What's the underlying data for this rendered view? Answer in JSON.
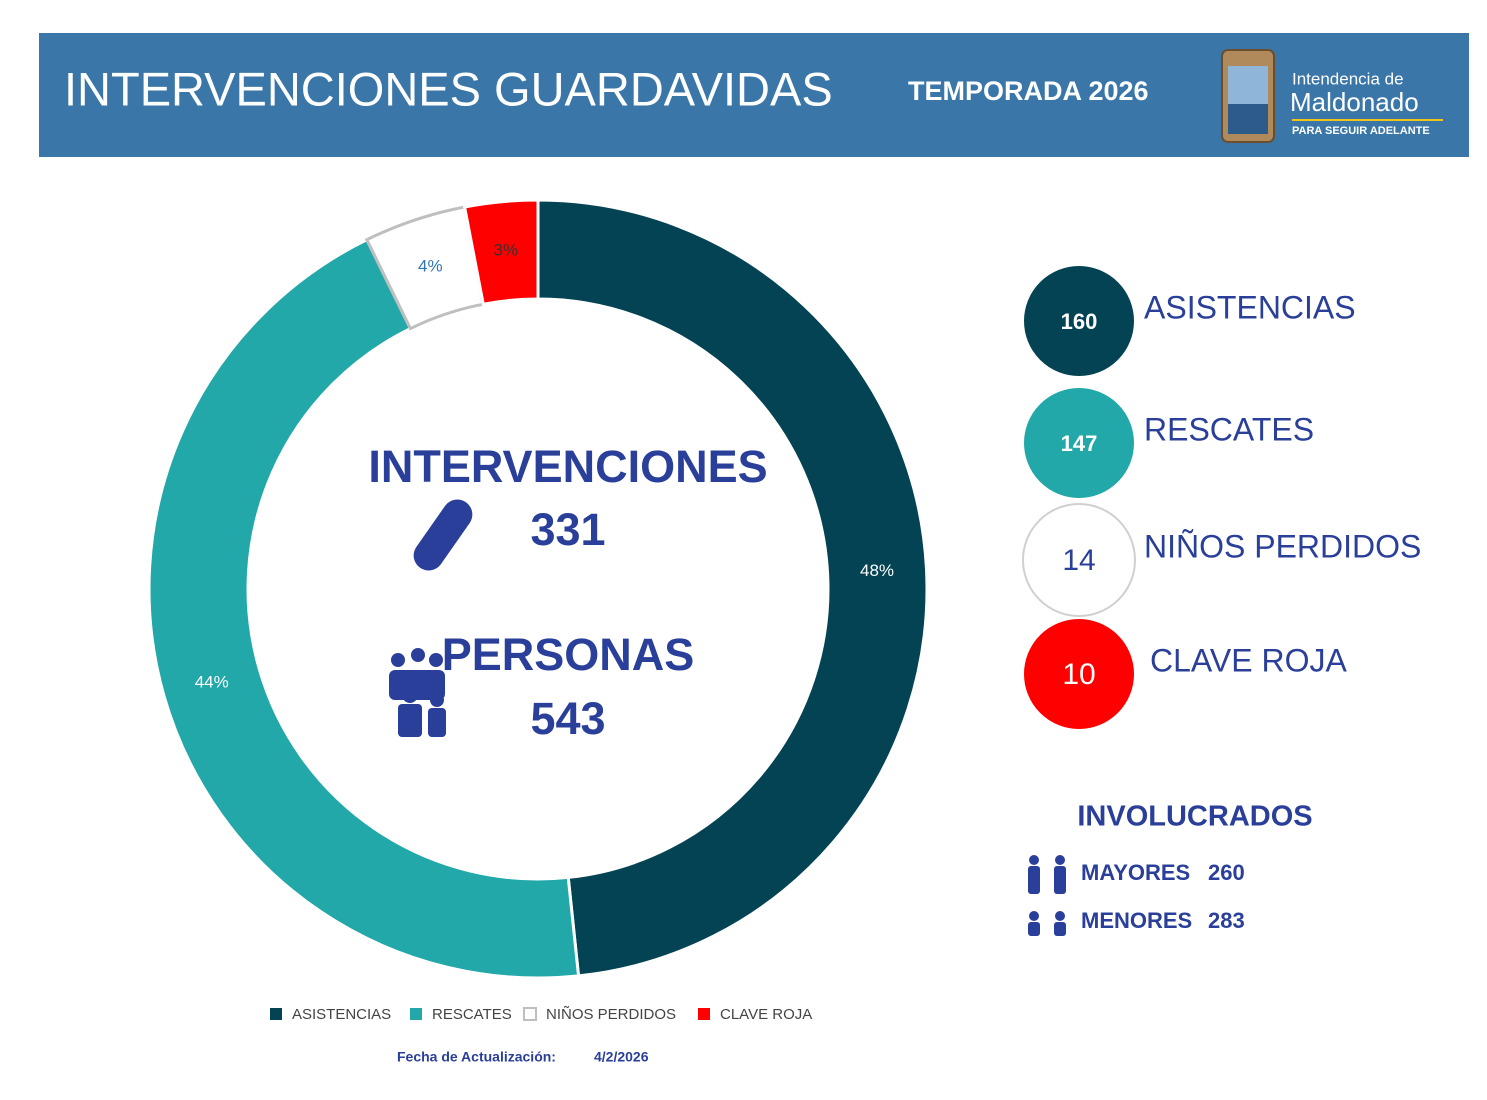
{
  "header": {
    "title": "INTERVENCIONES GUARDAVIDAS",
    "subtitle": "TEMPORADA 2026",
    "logo": {
      "line1": "Intendencia de",
      "line2": "Maldonado",
      "tagline": "PARA SEGUIR ADELANTE"
    }
  },
  "chart_data": {
    "type": "donut",
    "categories": [
      "ASISTENCIAS",
      "RESCATES",
      "NIÑOS PERDIDOS",
      "CLAVE ROJA"
    ],
    "values": [
      160,
      147,
      14,
      10
    ],
    "value_labels": [
      "48%",
      "44%",
      "4%",
      "3%"
    ],
    "colors": [
      "#034353",
      "#22a8a8",
      "#ffffff",
      "#ff0000"
    ],
    "legend_position": "bottom"
  },
  "center": {
    "intervenciones_label": "INTERVENCIONES",
    "intervenciones": 331,
    "personas_label": "PERSONAS",
    "personas": 543
  },
  "involucrados": {
    "title": "INVOLUCRADOS",
    "rows": [
      {
        "label": "MAYORES",
        "value": 260
      },
      {
        "label": "MENORES",
        "value": 283
      }
    ]
  },
  "footer": {
    "label": "Fecha de Actualización:",
    "date": "4/2/2026"
  }
}
